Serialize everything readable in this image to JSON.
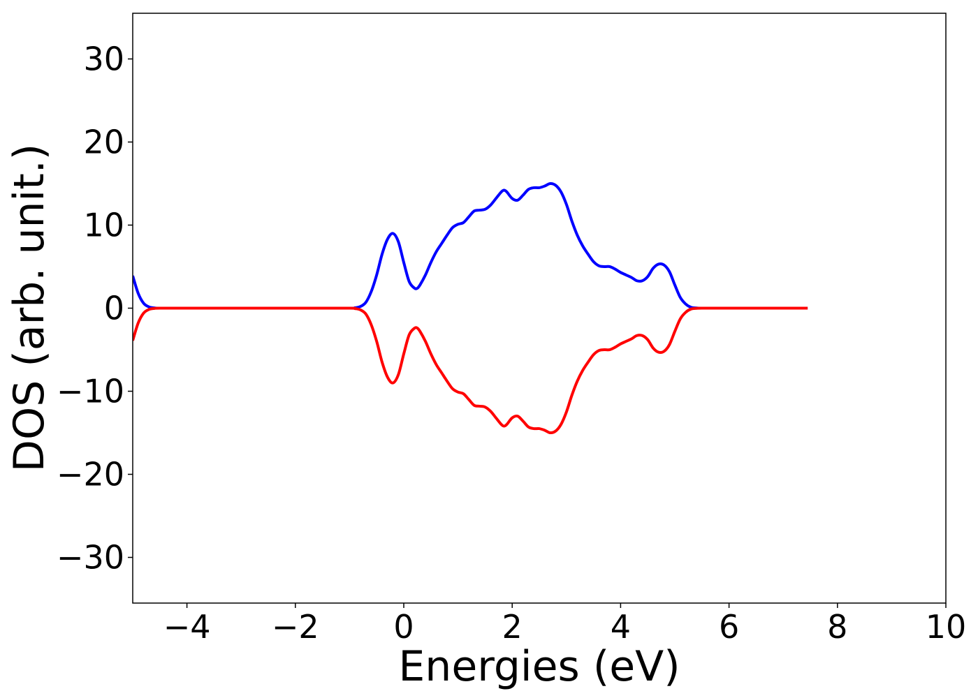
{
  "chart_data": {
    "type": "line",
    "title": "",
    "xlabel": "Energies (eV)",
    "ylabel": "DOS (arb. unit.)",
    "xlim": [
      -5,
      10
    ],
    "ylim": [
      -35.5,
      35.5
    ],
    "x_ticks": [
      -4,
      -2,
      0,
      2,
      4,
      6,
      8,
      10
    ],
    "x_tick_labels": [
      "−4",
      "−2",
      "0",
      "2",
      "4",
      "6",
      "8",
      "10"
    ],
    "y_ticks": [
      -30,
      -20,
      -10,
      0,
      10,
      20,
      30
    ],
    "y_tick_labels": [
      "−30",
      "−20",
      "−10",
      "0",
      "10",
      "20",
      "30"
    ],
    "grid": false,
    "legend": "none",
    "series": [
      {
        "color": "#0000ff",
        "x": [
          -5.0,
          -4.9,
          -4.8,
          -4.7,
          -4.6,
          -4.5,
          -4.0,
          -3.0,
          -2.0,
          -1.0,
          -0.9,
          -0.8,
          -0.7,
          -0.6,
          -0.5,
          -0.4,
          -0.3,
          -0.2,
          -0.1,
          0.0,
          0.1,
          0.2,
          0.25,
          0.3,
          0.4,
          0.5,
          0.6,
          0.7,
          0.8,
          0.9,
          1.0,
          1.1,
          1.2,
          1.3,
          1.4,
          1.5,
          1.6,
          1.7,
          1.8,
          1.85,
          1.9,
          2.0,
          2.1,
          2.2,
          2.3,
          2.4,
          2.5,
          2.6,
          2.7,
          2.8,
          2.9,
          3.0,
          3.1,
          3.2,
          3.3,
          3.4,
          3.5,
          3.6,
          3.7,
          3.8,
          3.9,
          4.0,
          4.1,
          4.2,
          4.3,
          4.4,
          4.5,
          4.6,
          4.7,
          4.8,
          4.9,
          5.0,
          5.1,
          5.2,
          5.3,
          5.4,
          5.5,
          6.0,
          7.0,
          7.45
        ],
        "y": [
          3.9,
          1.8,
          0.6,
          0.15,
          0.03,
          0.0,
          0.0,
          0.0,
          0.0,
          0.0,
          0.05,
          0.2,
          0.7,
          2.0,
          4.0,
          6.5,
          8.3,
          9.0,
          8.0,
          5.5,
          3.2,
          2.4,
          2.4,
          2.8,
          4.0,
          5.5,
          6.8,
          7.8,
          8.8,
          9.7,
          10.1,
          10.3,
          11.0,
          11.7,
          11.8,
          11.9,
          12.4,
          13.2,
          14.0,
          14.2,
          14.0,
          13.2,
          13.0,
          13.6,
          14.3,
          14.5,
          14.5,
          14.7,
          15.0,
          14.8,
          14.0,
          12.5,
          10.5,
          8.8,
          7.5,
          6.5,
          5.6,
          5.1,
          5.0,
          5.0,
          4.7,
          4.3,
          4.0,
          3.7,
          3.3,
          3.3,
          3.8,
          4.8,
          5.3,
          5.2,
          4.4,
          2.8,
          1.3,
          0.5,
          0.1,
          0.02,
          0.0,
          0.0,
          0.0,
          0.0
        ]
      },
      {
        "color": "#ff0000",
        "x": [
          -5.0,
          -4.9,
          -4.8,
          -4.7,
          -4.6,
          -4.5,
          -4.0,
          -3.0,
          -2.0,
          -1.0,
          -0.9,
          -0.8,
          -0.7,
          -0.6,
          -0.5,
          -0.4,
          -0.3,
          -0.2,
          -0.1,
          0.0,
          0.1,
          0.2,
          0.25,
          0.3,
          0.4,
          0.5,
          0.6,
          0.7,
          0.8,
          0.9,
          1.0,
          1.1,
          1.2,
          1.3,
          1.4,
          1.5,
          1.6,
          1.7,
          1.8,
          1.85,
          1.9,
          2.0,
          2.1,
          2.2,
          2.3,
          2.4,
          2.5,
          2.6,
          2.7,
          2.8,
          2.9,
          3.0,
          3.1,
          3.2,
          3.3,
          3.4,
          3.5,
          3.6,
          3.7,
          3.8,
          3.9,
          4.0,
          4.1,
          4.2,
          4.3,
          4.4,
          4.5,
          4.6,
          4.7,
          4.8,
          4.9,
          5.0,
          5.1,
          5.2,
          5.3,
          5.4,
          5.5,
          6.0,
          7.0,
          7.45
        ],
        "y": [
          -3.9,
          -1.8,
          -0.6,
          -0.15,
          -0.03,
          0.0,
          0.0,
          0.0,
          0.0,
          0.0,
          -0.05,
          -0.2,
          -0.7,
          -2.0,
          -4.0,
          -6.5,
          -8.3,
          -9.0,
          -8.0,
          -5.5,
          -3.2,
          -2.4,
          -2.4,
          -2.8,
          -4.0,
          -5.5,
          -6.8,
          -7.8,
          -8.8,
          -9.7,
          -10.1,
          -10.3,
          -11.0,
          -11.7,
          -11.8,
          -11.9,
          -12.4,
          -13.2,
          -14.0,
          -14.2,
          -14.0,
          -13.2,
          -13.0,
          -13.6,
          -14.3,
          -14.5,
          -14.5,
          -14.7,
          -15.0,
          -14.8,
          -14.0,
          -12.5,
          -10.5,
          -8.8,
          -7.5,
          -6.5,
          -5.6,
          -5.1,
          -5.0,
          -5.0,
          -4.7,
          -4.3,
          -4.0,
          -3.7,
          -3.3,
          -3.3,
          -3.8,
          -4.8,
          -5.3,
          -5.2,
          -4.4,
          -2.8,
          -1.3,
          -0.5,
          -0.1,
          -0.02,
          0.0,
          0.0,
          0.0,
          0.0
        ]
      }
    ]
  }
}
